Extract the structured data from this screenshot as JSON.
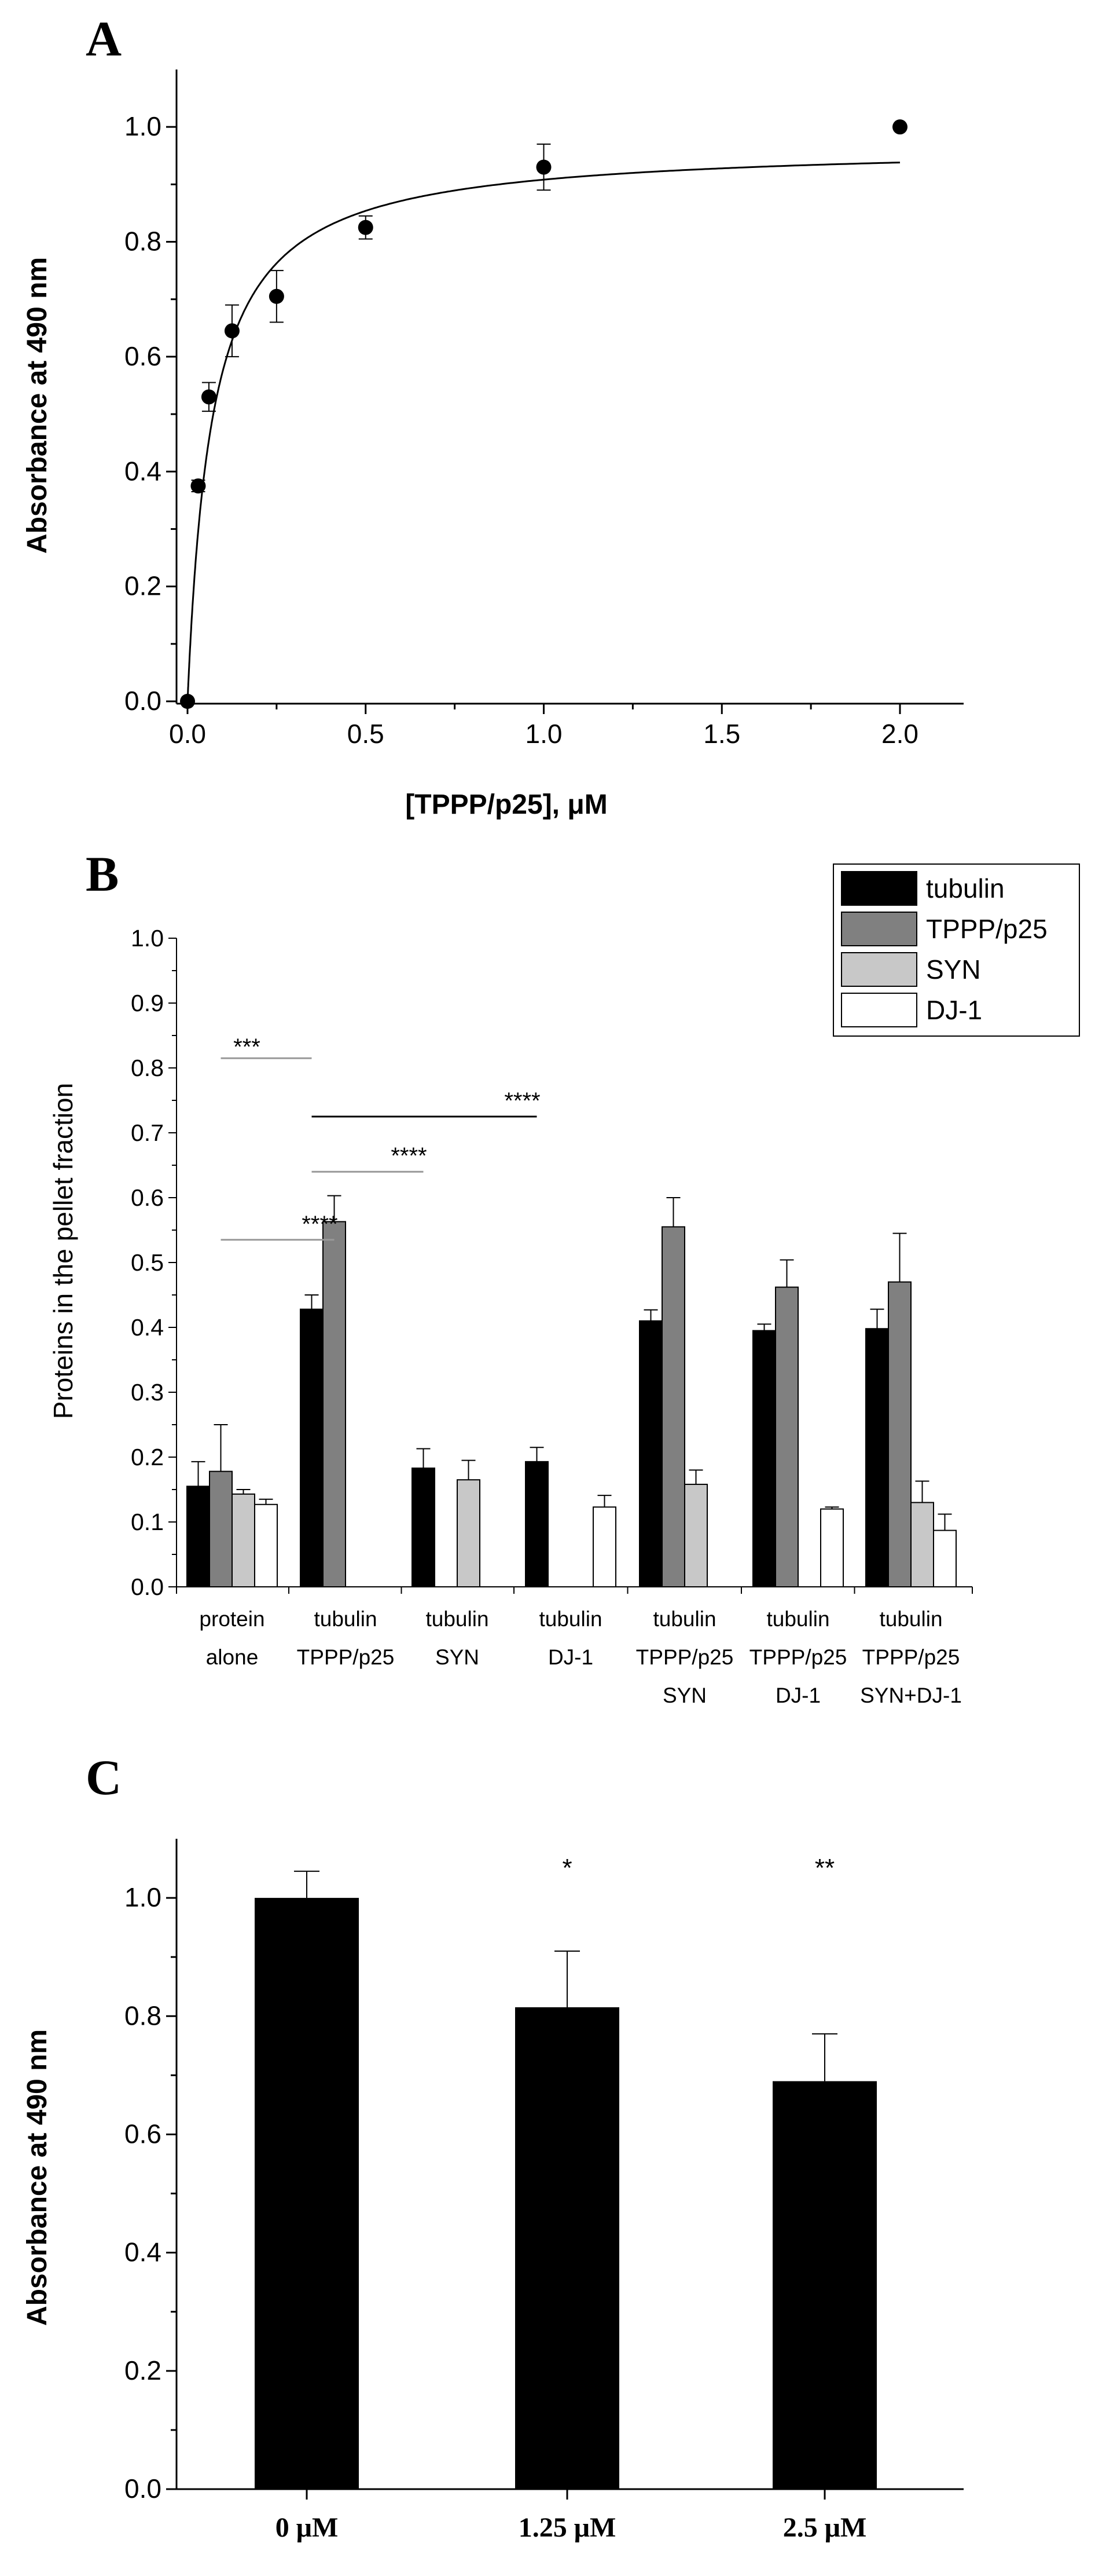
{
  "colors": {
    "tubulin": "#000000",
    "tppp": "#808080",
    "syn": "#c8c8c8",
    "dj1": "#ffffff",
    "sig_black": "#000000",
    "sig_gray": "#999999"
  },
  "chart_data": [
    {
      "panel": "A",
      "type": "scatter",
      "xlabel": "[TPPP/p25], μM",
      "ylabel": "Absorbance at 490 nm",
      "xlim": [
        0,
        2.25
      ],
      "ylim": [
        0,
        1.1
      ],
      "xticks": [
        "0.0",
        "0.5",
        "1.0",
        "1.5",
        "2.0"
      ],
      "yticks": [
        "0.0",
        "0.2",
        "0.4",
        "0.6",
        "0.8",
        "1.0"
      ],
      "xtick_values": [
        0,
        0.5,
        1.0,
        1.5,
        2.0
      ],
      "ytick_values": [
        0,
        0.2,
        0.4,
        0.6,
        0.8,
        1.0
      ],
      "points": [
        {
          "x": 0,
          "y": 0,
          "err": 0
        },
        {
          "x": 0.03,
          "y": 0.375,
          "err": 0.01
        },
        {
          "x": 0.06,
          "y": 0.53,
          "err": 0.025
        },
        {
          "x": 0.125,
          "y": 0.645,
          "err": 0.045
        },
        {
          "x": 0.25,
          "y": 0.705,
          "err": 0.045
        },
        {
          "x": 0.5,
          "y": 0.825,
          "err": 0.02
        },
        {
          "x": 1.0,
          "y": 0.93,
          "err": 0.04
        },
        {
          "x": 2.0,
          "y": 1.0,
          "err": 0
        }
      ],
      "fit": {
        "model": "hyperbolic",
        "bmax": 0.97,
        "kd": 0.068,
        "x_end": 2.0
      }
    },
    {
      "panel": "B",
      "type": "bar",
      "ylabel": "Proteins in the pellet fraction",
      "ylim": [
        0,
        1.0
      ],
      "yticks": [
        "0.0",
        "0.1",
        "0.2",
        "0.3",
        "0.4",
        "0.5",
        "0.6",
        "0.7",
        "0.8",
        "0.9",
        "1.0"
      ],
      "ytick_values": [
        0,
        0.1,
        0.2,
        0.3,
        0.4,
        0.5,
        0.6,
        0.7,
        0.8,
        0.9,
        1.0
      ],
      "legend": [
        "tubulin",
        "TPPP/p25",
        "SYN",
        "DJ-1"
      ],
      "legend_position": "top-right",
      "groups": [
        {
          "lines": [
            "protein",
            "alone"
          ],
          "bars": [
            {
              "s": 0,
              "v": 0.155,
              "e": 0.038
            },
            {
              "s": 1,
              "v": 0.178,
              "e": 0.072
            },
            {
              "s": 2,
              "v": 0.143,
              "e": 0.007
            },
            {
              "s": 3,
              "v": 0.127,
              "e": 0.008
            }
          ]
        },
        {
          "lines": [
            "tubulin",
            "TPPP/p25"
          ],
          "bars": [
            {
              "s": 0,
              "v": 0.428,
              "e": 0.022
            },
            {
              "s": 1,
              "v": 0.563,
              "e": 0.04
            }
          ]
        },
        {
          "lines": [
            "tubulin",
            "SYN"
          ],
          "bars": [
            {
              "s": 0,
              "v": 0.183,
              "e": 0.03
            },
            {
              "s": 2,
              "v": 0.165,
              "e": 0.03
            }
          ]
        },
        {
          "lines": [
            "tubulin",
            "DJ-1"
          ],
          "bars": [
            {
              "s": 0,
              "v": 0.193,
              "e": 0.022
            },
            {
              "s": 3,
              "v": 0.123,
              "e": 0.018
            }
          ]
        },
        {
          "lines": [
            "tubulin",
            "TPPP/p25",
            "SYN"
          ],
          "bars": [
            {
              "s": 0,
              "v": 0.41,
              "e": 0.017
            },
            {
              "s": 1,
              "v": 0.555,
              "e": 0.045
            },
            {
              "s": 2,
              "v": 0.158,
              "e": 0.022
            }
          ]
        },
        {
          "lines": [
            "tubulin",
            "TPPP/p25",
            "DJ-1"
          ],
          "bars": [
            {
              "s": 0,
              "v": 0.395,
              "e": 0.01
            },
            {
              "s": 1,
              "v": 0.462,
              "e": 0.042
            },
            {
              "s": 3,
              "v": 0.12,
              "e": 0.003
            }
          ]
        },
        {
          "lines": [
            "tubulin",
            "TPPP/p25",
            "SYN+DJ-1"
          ],
          "bars": [
            {
              "s": 0,
              "v": 0.398,
              "e": 0.03
            },
            {
              "s": 1,
              "v": 0.47,
              "e": 0.075
            },
            {
              "s": 2,
              "v": 0.13,
              "e": 0.033
            },
            {
              "s": 3,
              "v": 0.087,
              "e": 0.025
            }
          ]
        }
      ],
      "significance": [
        {
          "label": "***",
          "y": 0.815,
          "from": [
            0,
            1
          ],
          "to": [
            1,
            0
          ],
          "color": "sig_gray"
        },
        {
          "label": "****",
          "y": 0.725,
          "from": [
            1,
            0
          ],
          "to": [
            3,
            0
          ],
          "color": "sig_black"
        },
        {
          "label": "****",
          "y": 0.64,
          "from": [
            1,
            0
          ],
          "to": [
            2,
            0
          ],
          "color": "sig_gray"
        },
        {
          "label": "****",
          "y": 0.535,
          "from": [
            0,
            1
          ],
          "to": [
            1,
            1
          ],
          "color": "sig_gray"
        }
      ]
    },
    {
      "panel": "C",
      "type": "bar",
      "ylabel": "Absorbance at 490 nm",
      "ylim": [
        0,
        1.1
      ],
      "yticks": [
        "0.0",
        "0.2",
        "0.4",
        "0.6",
        "0.8",
        "1.0"
      ],
      "ytick_values": [
        0,
        0.2,
        0.4,
        0.6,
        0.8,
        1.0
      ],
      "categories": [
        "0 μM",
        "1.25 μM",
        "2.5 μM"
      ],
      "values": [
        1.0,
        0.815,
        0.69
      ],
      "errors": [
        0.045,
        0.095,
        0.08
      ],
      "significance": [
        "",
        "*",
        "**"
      ]
    }
  ],
  "panel_labels": [
    "A",
    "B",
    "C"
  ]
}
